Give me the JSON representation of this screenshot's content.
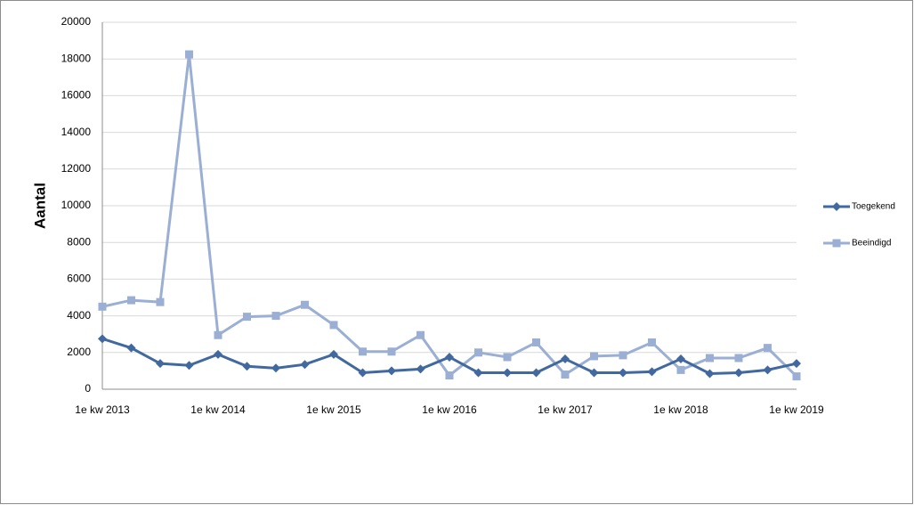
{
  "chart_data": {
    "type": "line",
    "y_axis_label": "Aantal",
    "categories": [
      "1e kw 2013",
      null,
      null,
      null,
      "1e kw 2014",
      null,
      null,
      null,
      "1e kw 2015",
      null,
      null,
      null,
      "1e kw 2016",
      null,
      null,
      null,
      "1e kw 2017",
      null,
      null,
      null,
      "1e kw 2018",
      null,
      null,
      null,
      "1e kw 2019"
    ],
    "series": [
      {
        "name": "Toegekend",
        "color": "#41699f",
        "marker": "diamond",
        "values": [
          2750,
          2250,
          1400,
          1300,
          1900,
          1250,
          1150,
          1350,
          1900,
          900,
          1000,
          1100,
          1750,
          900,
          900,
          900,
          1650,
          900,
          900,
          950,
          1650,
          850,
          900,
          1050,
          1400
        ]
      },
      {
        "name": "Beeindigd",
        "color": "#9aafd3",
        "marker": "square",
        "values": [
          4500,
          4850,
          4750,
          18250,
          2950,
          3950,
          4000,
          4600,
          3500,
          2050,
          2050,
          2950,
          750,
          2000,
          1750,
          2550,
          800,
          1800,
          1850,
          2550,
          1050,
          1700,
          1700,
          2250,
          700
        ]
      }
    ],
    "ylim": [
      0,
      20000
    ],
    "yticks": [
      0,
      2000,
      4000,
      6000,
      8000,
      10000,
      12000,
      14000,
      16000,
      18000,
      20000
    ],
    "grid": true,
    "legend": "right"
  }
}
